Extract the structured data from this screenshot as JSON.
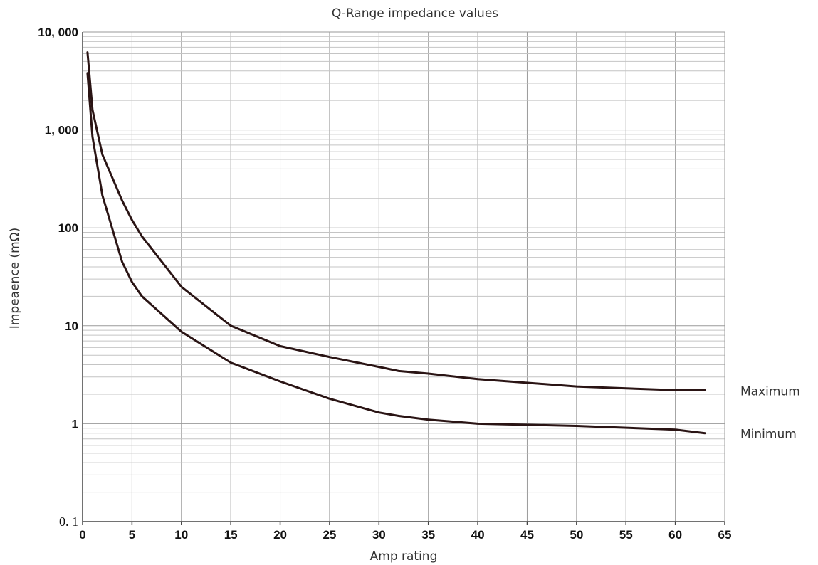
{
  "chart_data": {
    "type": "line",
    "title": "Q-Range impedance values",
    "xlabel": "Amp rating",
    "ylabel": "Impeaence (mΩ)",
    "xlim": [
      0,
      65
    ],
    "ylim": [
      0.1,
      10000
    ],
    "yscale": "log",
    "grid": true,
    "x_ticks": [
      0,
      5,
      10,
      15,
      20,
      25,
      30,
      35,
      40,
      45,
      50,
      55,
      60,
      65
    ],
    "x_tick_labels": [
      "0",
      "5",
      "10",
      "15",
      "20",
      "25",
      "30",
      "35",
      "40",
      "45",
      "50",
      "55",
      "60",
      "65"
    ],
    "y_ticks": [
      0.1,
      1,
      10,
      100,
      1000,
      10000
    ],
    "y_tick_labels": [
      "0. 1",
      "1",
      "10",
      "100",
      "1, 000",
      "10, 000"
    ],
    "series": [
      {
        "name": "Maximum",
        "x": [
          0.5,
          1,
          2,
          4,
          5,
          6,
          10,
          15,
          20,
          25,
          30,
          32,
          35,
          40,
          50,
          60,
          63
        ],
        "y": [
          6200,
          1600,
          560,
          190,
          120,
          82,
          25,
          10,
          6.2,
          4.8,
          3.8,
          3.45,
          3.25,
          2.85,
          2.4,
          2.2,
          2.2
        ]
      },
      {
        "name": "Minimum",
        "x": [
          0.5,
          1,
          2,
          4,
          5,
          6,
          10,
          15,
          20,
          25,
          30,
          32,
          35,
          40,
          50,
          60,
          63
        ],
        "y": [
          3800,
          850,
          215,
          45,
          28,
          20,
          8.7,
          4.2,
          2.7,
          1.8,
          1.3,
          1.2,
          1.1,
          1.0,
          0.95,
          0.87,
          0.8
        ]
      }
    ]
  }
}
